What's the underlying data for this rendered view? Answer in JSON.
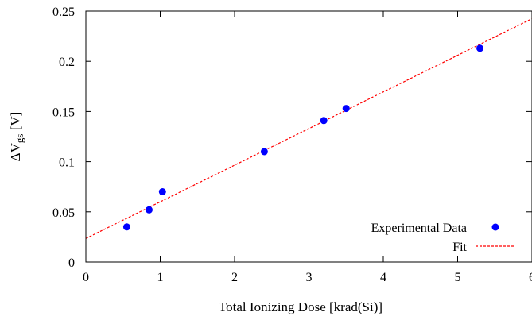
{
  "chart_data": {
    "type": "scatter",
    "xlabel": "Total Ionizing Dose [krad(Si)]",
    "ylabel_prefix": "ΔV",
    "ylabel_sub": "gs",
    "ylabel_suffix": " [V]",
    "xlim": [
      0,
      6
    ],
    "ylim": [
      0,
      0.25
    ],
    "x_ticks": [
      0,
      1,
      2,
      3,
      4,
      5,
      6
    ],
    "y_ticks": [
      0,
      0.05,
      0.1,
      0.15,
      0.2,
      0.25
    ],
    "x_tick_labels": [
      "0",
      "1",
      "2",
      "3",
      "4",
      "5",
      "6"
    ],
    "y_tick_labels": [
      "0",
      "0.05",
      "0.1",
      "0.15",
      "0.2",
      "0.25"
    ],
    "grid": false,
    "legend_position": "bottom-right",
    "series": [
      {
        "name": "Experimental Data",
        "kind": "points",
        "color": "#0000ff",
        "x": [
          0.55,
          0.85,
          1.03,
          2.4,
          3.2,
          3.5,
          5.3
        ],
        "y": [
          0.035,
          0.052,
          0.07,
          0.11,
          0.141,
          0.153,
          0.213
        ]
      },
      {
        "name": "Fit",
        "kind": "line",
        "color": "#ff0000",
        "style": "dashed",
        "x": [
          0,
          6
        ],
        "y": [
          0.0235,
          0.2425
        ]
      }
    ]
  }
}
